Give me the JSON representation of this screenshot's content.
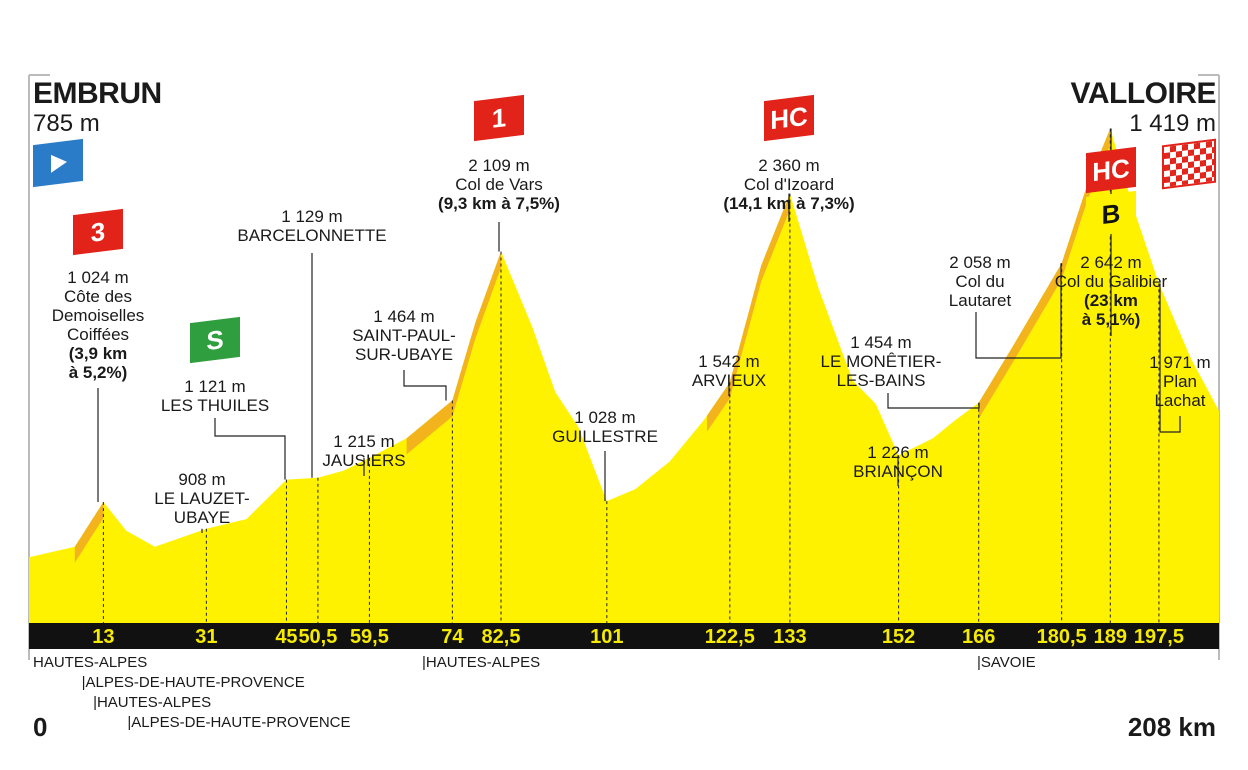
{
  "start": {
    "city": "EMBRUN",
    "altitude": "785 m"
  },
  "finish": {
    "city": "VALLOIRE",
    "altitude": "1 419 m"
  },
  "distance": {
    "start": "0",
    "end": "208 km"
  },
  "colors": {
    "profile": "#fff200",
    "climb": "#f2b31c",
    "axis": "#111111",
    "km_text": "#f5ea00",
    "cat_badge": "#e2231a",
    "sprint_badge": "#2e9e3e",
    "bonus_badge": "#fff200",
    "start_flag": "#2a7bc8"
  },
  "chart_data": {
    "type": "area",
    "xlabel": "",
    "ylabel": "",
    "xlim": [
      0,
      208
    ],
    "ylim": [
      500,
      2800
    ],
    "profile": [
      [
        0,
        785
      ],
      [
        8,
        830
      ],
      [
        13,
        1024
      ],
      [
        17,
        900
      ],
      [
        22,
        830
      ],
      [
        31,
        908
      ],
      [
        38,
        950
      ],
      [
        45,
        1121
      ],
      [
        50.5,
        1129
      ],
      [
        55,
        1160
      ],
      [
        59.5,
        1215
      ],
      [
        66,
        1300
      ],
      [
        74,
        1464
      ],
      [
        78,
        1800
      ],
      [
        82.5,
        2109
      ],
      [
        88,
        1780
      ],
      [
        92,
        1500
      ],
      [
        96,
        1350
      ],
      [
        101,
        1028
      ],
      [
        106,
        1080
      ],
      [
        112,
        1200
      ],
      [
        118,
        1380
      ],
      [
        122.5,
        1542
      ],
      [
        128,
        2050
      ],
      [
        133,
        2360
      ],
      [
        138,
        1950
      ],
      [
        144,
        1550
      ],
      [
        148,
        1450
      ],
      [
        152,
        1226
      ],
      [
        158,
        1300
      ],
      [
        162,
        1380
      ],
      [
        166,
        1454
      ],
      [
        172,
        1700
      ],
      [
        180.5,
        2058
      ],
      [
        185,
        2400
      ],
      [
        189,
        2642
      ],
      [
        193,
        2300
      ],
      [
        197.5,
        1971
      ],
      [
        203,
        1650
      ],
      [
        208,
        1419
      ]
    ],
    "climbs": [
      {
        "from": 8,
        "to": 13
      },
      {
        "from": 66,
        "to": 82.5
      },
      {
        "from": 118.5,
        "to": 133
      },
      {
        "from": 166,
        "to": 189
      }
    ],
    "km_markers": [
      "13",
      "31",
      "45",
      "50,5",
      "59,5",
      "74",
      "82,5",
      "101",
      "122,5",
      "133",
      "152",
      "166",
      "180,5",
      "189",
      "197,5"
    ],
    "km_values": [
      13,
      31,
      45,
      50.5,
      59.5,
      74,
      82.5,
      101,
      122.5,
      133,
      152,
      166,
      180.5,
      189,
      197.5
    ]
  },
  "points": [
    {
      "km": 13,
      "badge": "3",
      "badge_type": "cat",
      "lines": [
        "1 024 m",
        "Côte des",
        "Demoiselles",
        "Coiffées"
      ],
      "bold": [
        "(3,9 km",
        "à 5,2%)"
      ]
    },
    {
      "km": 31,
      "lines": [
        "908 m",
        "LE LAUZET-",
        "UBAYE"
      ]
    },
    {
      "km": 45,
      "badge": "S",
      "badge_type": "sprint",
      "lines": [
        "1 121 m",
        "LES THUILES"
      ]
    },
    {
      "km": 50.5,
      "lines": [
        "1 129 m",
        "BARCELONNETTE"
      ]
    },
    {
      "km": 59.5,
      "lines": [
        "1 215 m",
        "JAUSIERS"
      ]
    },
    {
      "km": 74,
      "lines": [
        "1 464 m",
        "SAINT-PAUL-",
        "SUR-UBAYE"
      ]
    },
    {
      "km": 82.5,
      "badge": "1",
      "badge_type": "cat",
      "lines": [
        "2 109 m",
        "Col de Vars"
      ],
      "bold": [
        "(9,3 km à 7,5%)"
      ]
    },
    {
      "km": 101,
      "lines": [
        "1 028 m",
        "GUILLESTRE"
      ]
    },
    {
      "km": 122.5,
      "lines": [
        "1 542 m",
        "ARVIEUX"
      ]
    },
    {
      "km": 133,
      "badge": "HC",
      "badge_type": "cat",
      "lines": [
        "2 360 m",
        "Col d'Izoard"
      ],
      "bold": [
        "(14,1 km à 7,3%)"
      ]
    },
    {
      "km": 152,
      "lines": [
        "1 226 m",
        "BRIANÇON"
      ]
    },
    {
      "km": 166,
      "lines": [
        "1 454 m",
        "LE MONÊTIER-",
        "LES-BAINS"
      ]
    },
    {
      "km": 180.5,
      "lines": [
        "2 058 m",
        "Col du",
        "Lautaret"
      ]
    },
    {
      "km": 189,
      "badge": "HC",
      "badge_type": "cat",
      "badge2": "B",
      "lines": [
        "2 642 m",
        "Col du Galibier"
      ],
      "bold": [
        "(23 km",
        "à 5,1%)"
      ]
    },
    {
      "km": 197.5,
      "lines": [
        "1 971 m",
        "Plan",
        "Lachat"
      ]
    }
  ],
  "regions": [
    {
      "label": "HAUTES-ALPES",
      "km": 0,
      "row": 0
    },
    {
      "label": "|ALPES-DE-HAUTE-PROVENCE",
      "km": 8.5,
      "row": 1
    },
    {
      "label": "|HAUTES-ALPES",
      "km": 10.5,
      "row": 2
    },
    {
      "label": "|ALPES-DE-HAUTE-PROVENCE",
      "km": 16.5,
      "row": 3
    },
    {
      "label": "|HAUTES-ALPES",
      "km": 68,
      "row": 0
    },
    {
      "label": "|SAVOIE",
      "km": 165,
      "row": 0
    }
  ]
}
